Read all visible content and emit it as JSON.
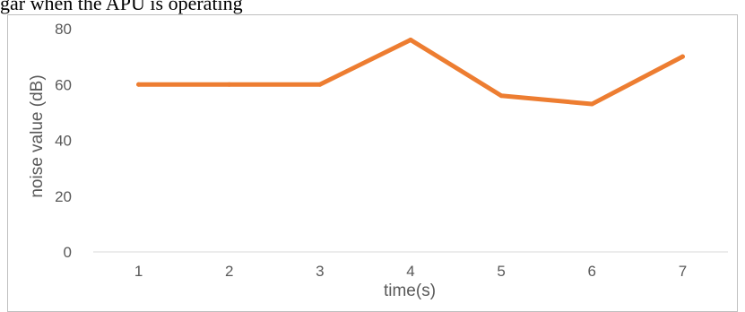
{
  "figure": {
    "caption_fragment": "gar when the APU is operating"
  },
  "chart_data": {
    "type": "line",
    "title": "",
    "xlabel": "time(s)",
    "ylabel": "noise value  (dB)",
    "categories": [
      "1",
      "2",
      "3",
      "4",
      "5",
      "6",
      "7"
    ],
    "series": [
      {
        "values": [
          60,
          60,
          60,
          76,
          56,
          53,
          70
        ],
        "color": "#ED7D31"
      }
    ],
    "ylim": [
      0,
      80
    ],
    "yticks": [
      "0",
      "20",
      "40",
      "60",
      "80"
    ],
    "grid": false,
    "legend": "none",
    "axis_color": "#d9d9d9",
    "text_color": "#595959"
  }
}
